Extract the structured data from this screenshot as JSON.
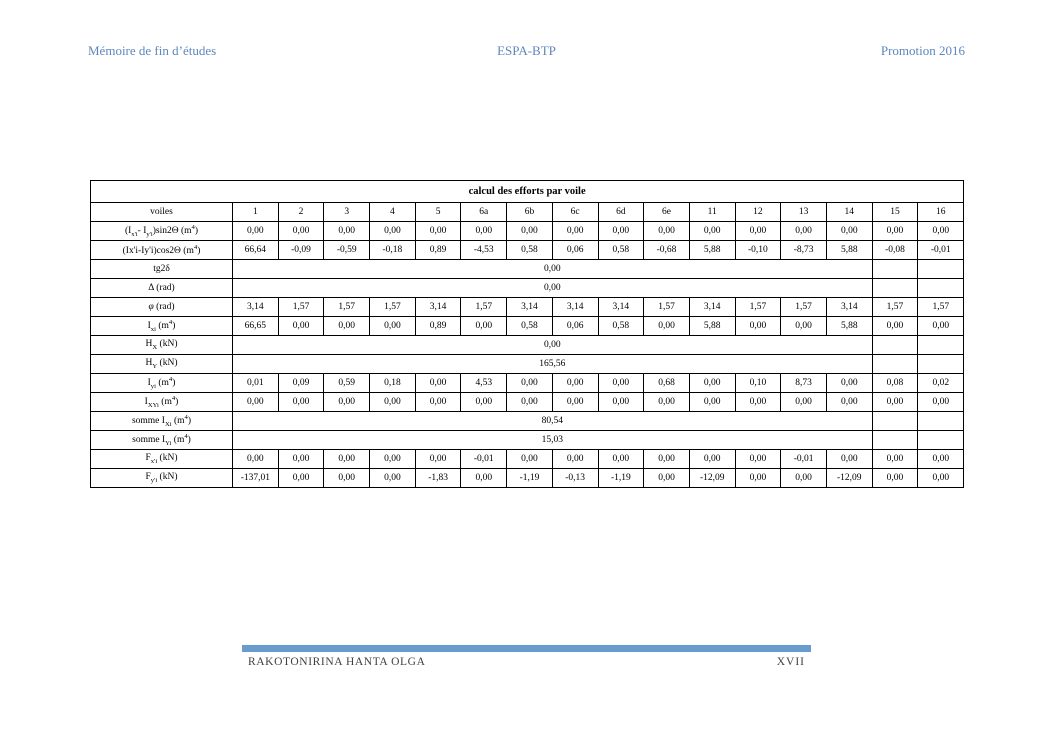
{
  "page_header": {
    "left": "Mémoire de fin d’études",
    "center": "ESPA-BTP",
    "right": "Promotion 2016",
    "text_color": "#5c87bd"
  },
  "table": {
    "title": "calcul des efforts par voile",
    "header": {
      "label": "voiles",
      "columns": [
        "1",
        "2",
        "3",
        "4",
        "5",
        "6a",
        "6b",
        "6c",
        "6d",
        "6e",
        "11",
        "12",
        "13",
        "14",
        "15",
        "16"
      ]
    },
    "merged_span": 14,
    "trailing_empty_cols": 2,
    "rows": [
      {
        "label": "(Ix'i- Iy'i)sin2Θ (m4)",
        "label_html": "(I<sub>x'i</sub>- I<sub>y'i</sub>)sin2Θ (m<sup>4</sup>)",
        "size": "small",
        "cells": [
          "0,00",
          "0,00",
          "0,00",
          "0,00",
          "0,00",
          "0,00",
          "0,00",
          "0,00",
          "0,00",
          "0,00",
          "0,00",
          "0,00",
          "0,00",
          "0,00",
          "0,00",
          "0,00"
        ]
      },
      {
        "label": "(Ix'i-Iy'i)cos2Θ (m4)",
        "label_html": "(Ix'i-Iy'i)cos2Θ (m<sup>4</sup>)",
        "size": "small",
        "cells": [
          "66,64",
          "-0,09",
          "-0,59",
          "-0,18",
          "0,89",
          "-4,53",
          "0,58",
          "0,06",
          "0,58",
          "-0,68",
          "5,88",
          "-0,10",
          "-8,73",
          "5,88",
          "-0,08",
          "-0,01"
        ]
      },
      {
        "label": "tg2δ",
        "label_html": "tg2δ",
        "size": "large",
        "merged": "0,00"
      },
      {
        "label": "Δ (rad)",
        "label_html": "Δ (rad)",
        "size": "large",
        "merged": "0,00"
      },
      {
        "label": "φ (rad)",
        "label_html": "<i>φ</i> (rad)",
        "size": "large",
        "cells": [
          "3,14",
          "1,57",
          "1,57",
          "1,57",
          "3,14",
          "1,57",
          "3,14",
          "3,14",
          "3,14",
          "1,57",
          "3,14",
          "1,57",
          "1,57",
          "3,14",
          "1,57",
          "1,57"
        ]
      },
      {
        "label": "Ixi (m4)",
        "label_html": "I<sub>xi</sub> (m<sup>4</sup>)",
        "size": "large",
        "cells": [
          "66,65",
          "0,00",
          "0,00",
          "0,00",
          "0,89",
          "0,00",
          "0,58",
          "0,06",
          "0,58",
          "0,00",
          "5,88",
          "0,00",
          "0,00",
          "5,88",
          "0,00",
          "0,00"
        ]
      },
      {
        "label": "HX (kN)",
        "label_html": "H<sub>X</sub> (kN)",
        "size": "large",
        "merged": "0,00"
      },
      {
        "label": "HY (kN)",
        "label_html": "H<sub>Y</sub> (kN)",
        "size": "large",
        "merged": "165,56"
      },
      {
        "label": "Iyi (m4)",
        "label_html": "I<sub>yi</sub> (m<sup>4</sup>)",
        "size": "large",
        "cells": [
          "0,01",
          "0,09",
          "0,59",
          "0,18",
          "0,00",
          "4,53",
          "0,00",
          "0,00",
          "0,00",
          "0,68",
          "0,00",
          "0,10",
          "8,73",
          "0,00",
          "0,08",
          "0,02"
        ]
      },
      {
        "label": "IXYi (m4)",
        "label_html": "I<sub>XYi</sub> (m<sup>4</sup>)",
        "size": "large",
        "cells": [
          "0,00",
          "0,00",
          "0,00",
          "0,00",
          "0,00",
          "0,00",
          "0,00",
          "0,00",
          "0,00",
          "0,00",
          "0,00",
          "0,00",
          "0,00",
          "0,00",
          "0,00",
          "0,00"
        ]
      },
      {
        "label": "somme IXi (m4)",
        "label_html": "somme I<sub>Xi</sub> (m<sup>4</sup>)",
        "size": "large",
        "merged": "80,54"
      },
      {
        "label": "somme IYi (m4)",
        "label_html": "somme I<sub>Yi</sub> (m<sup>4</sup>)",
        "size": "large",
        "merged": "15,03"
      },
      {
        "label": "Fx'i (kN)",
        "label_html": "F<sub>x'i</sub> (kN)",
        "size": "large",
        "cells": [
          "0,00",
          "0,00",
          "0,00",
          "0,00",
          "0,00",
          "-0,01",
          "0,00",
          "0,00",
          "0,00",
          "0,00",
          "0,00",
          "0,00",
          "-0,01",
          "0,00",
          "0,00",
          "0,00"
        ]
      },
      {
        "label": "Fy'i (kN)",
        "label_html": "F<sub>y'i</sub> (kN)",
        "size": "large",
        "cells": [
          "-137,01",
          "0,00",
          "0,00",
          "0,00",
          "-1,83",
          "0,00",
          "-1,19",
          "-0,13",
          "-1,19",
          "0,00",
          "-12,09",
          "0,00",
          "0,00",
          "-12,09",
          "0,00",
          "0,00"
        ]
      }
    ]
  },
  "footer": {
    "author": "RAKOTONIRINA HANTA OLGA",
    "page_number": "XVII",
    "bar_color": "#689ccf"
  }
}
